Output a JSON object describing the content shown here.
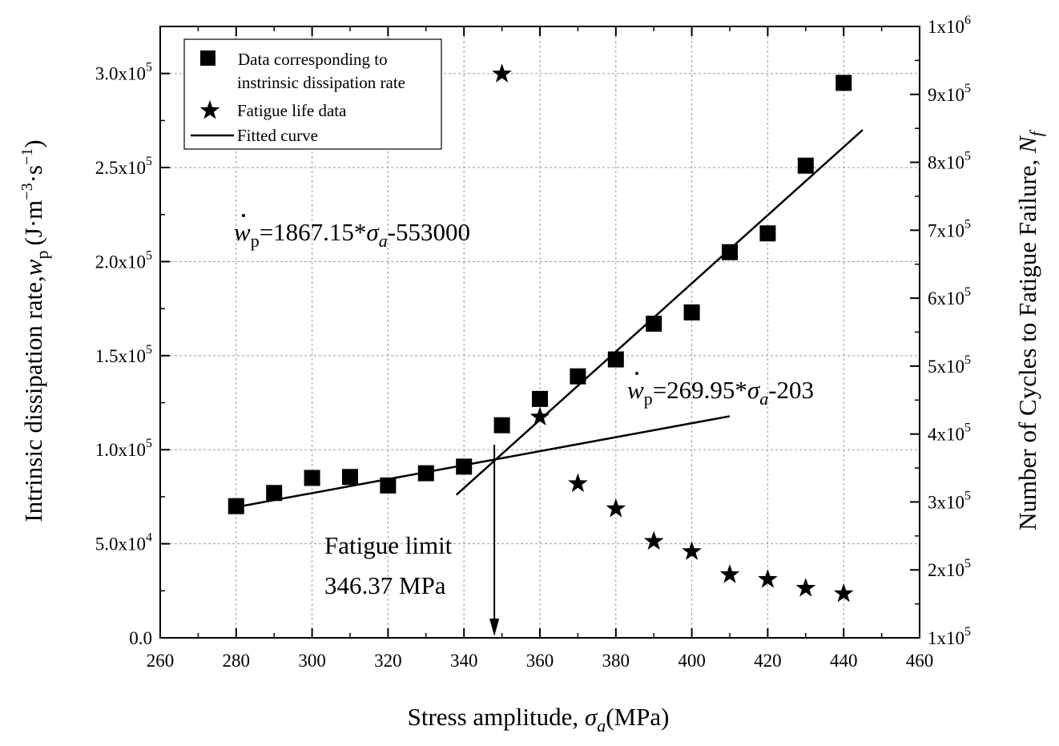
{
  "chart_data": {
    "type": "scatter",
    "title": "",
    "xlabel": "Stress amplitude, ",
    "xlabel_symbol": "σ",
    "xlabel_sub": "a",
    "xlabel_unit": "(MPa)",
    "ylabel_left_prefix": "Intrinsic dissipation rate,",
    "ylabel_left_symbol": "w",
    "ylabel_left_sub": "p",
    "ylabel_left_unit": "(J·m",
    "ylabel_left_unit_exp1": "−3",
    "ylabel_left_unit_mid": "·s",
    "ylabel_left_unit_exp2": "−1",
    "ylabel_left_unit_close": ")",
    "ylabel_right_prefix": "Number of Cycles to Fatigue Failure, ",
    "ylabel_right_symbol": "N",
    "ylabel_right_sub": "f",
    "xlim": [
      260,
      460
    ],
    "ylim_left": [
      0,
      325000
    ],
    "ylim_right": [
      100000,
      1000000
    ],
    "x_ticks": [
      260,
      280,
      300,
      320,
      340,
      360,
      380,
      400,
      420,
      440,
      460
    ],
    "y_left_ticks": [
      {
        "value": 0,
        "mantissa": "0.0",
        "exp": ""
      },
      {
        "value": 50000,
        "mantissa": "5.0x10",
        "exp": "4"
      },
      {
        "value": 100000,
        "mantissa": "1.0x10",
        "exp": "5"
      },
      {
        "value": 150000,
        "mantissa": "1.5x10",
        "exp": "5"
      },
      {
        "value": 200000,
        "mantissa": "2.0x10",
        "exp": "5"
      },
      {
        "value": 250000,
        "mantissa": "2.5x10",
        "exp": "5"
      },
      {
        "value": 300000,
        "mantissa": "3.0x10",
        "exp": "5"
      }
    ],
    "y_right_ticks": [
      {
        "value": 100000,
        "mantissa": "1x10",
        "exp": "5"
      },
      {
        "value": 200000,
        "mantissa": "2x10",
        "exp": "5"
      },
      {
        "value": 300000,
        "mantissa": "3x10",
        "exp": "5"
      },
      {
        "value": 400000,
        "mantissa": "4x10",
        "exp": "5"
      },
      {
        "value": 500000,
        "mantissa": "5x10",
        "exp": "5"
      },
      {
        "value": 600000,
        "mantissa": "6x10",
        "exp": "5"
      },
      {
        "value": 700000,
        "mantissa": "7x10",
        "exp": "5"
      },
      {
        "value": 800000,
        "mantissa": "8x10",
        "exp": "5"
      },
      {
        "value": 900000,
        "mantissa": "9x10",
        "exp": "5"
      },
      {
        "value": 1000000,
        "mantissa": "1x10",
        "exp": "6"
      }
    ],
    "grid": true,
    "series": [
      {
        "name": "Data corresponding to instrinsic dissipation rate",
        "marker": "square",
        "axis": "left",
        "x": [
          280,
          290,
          300,
          310,
          320,
          330,
          340,
          350,
          360,
          370,
          380,
          390,
          400,
          410,
          420,
          430,
          440
        ],
        "y": [
          70000,
          77000,
          85000,
          85500,
          81000,
          87500,
          91000,
          113000,
          127000,
          139000,
          148000,
          167000,
          173000,
          205000,
          215000,
          251000,
          295000
        ]
      },
      {
        "name": "Fatigue life data",
        "marker": "star",
        "axis": "right",
        "x": [
          350,
          360,
          370,
          380,
          390,
          400,
          410,
          420,
          430,
          440
        ],
        "y": [
          930000,
          425000,
          327000,
          290000,
          242000,
          227000,
          193000,
          186000,
          173000,
          165000
        ]
      }
    ],
    "fitted_lines": [
      {
        "name": "Fitted curve",
        "axis": "left",
        "x": [
          280,
          410
        ],
        "y": [
          69500,
          117800
        ]
      },
      {
        "name": "Fitted curve",
        "axis": "left",
        "x": [
          338,
          445
        ],
        "y": [
          76000,
          270000
        ]
      }
    ],
    "legend": {
      "position": "top-left",
      "items": [
        {
          "label_line1": "Data corresponding to",
          "label_line2": "instrinsic dissipation rate",
          "marker": "square"
        },
        {
          "label_line1": "Fatigue life data",
          "label_line2": "",
          "marker": "star"
        },
        {
          "label_line1": "Fitted curve",
          "label_line2": "",
          "marker": "line"
        }
      ]
    },
    "annotations": {
      "eq_high": {
        "sym": "w",
        "sub": "p",
        "text": "=1867.15*",
        "sigma": "σ",
        "sigma_sub": "a",
        "tail": "-553000"
      },
      "eq_low": {
        "sym": "w",
        "sub": "p",
        "text": "=269.95*",
        "sigma": "σ",
        "sigma_sub": "a",
        "tail": "-203"
      },
      "fatigue_limit_label": "Fatigue limit",
      "fatigue_limit_value": "346.37 MPa",
      "fatigue_limit_x": 348,
      "intersection_y": 95000
    }
  }
}
